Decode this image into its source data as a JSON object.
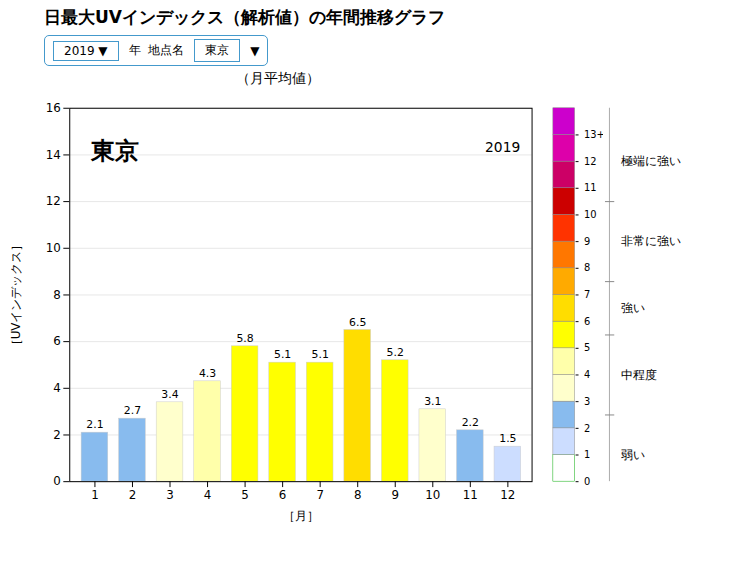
{
  "chart_data": {
    "type": "bar",
    "title": "日最大UVインデックス（解析値）の年間推移グラフ",
    "subtitle": "（月平均値）",
    "xlabel": "［月］",
    "ylabel": "［UVインデックス］",
    "categories": [
      1,
      2,
      3,
      4,
      5,
      6,
      7,
      8,
      9,
      10,
      11,
      12
    ],
    "values": [
      2.1,
      2.7,
      3.4,
      4.3,
      5.8,
      5.1,
      5.1,
      6.5,
      5.2,
      3.1,
      2.2,
      1.5
    ],
    "colors": [
      "#88bbee",
      "#88bbee",
      "#ffffcc",
      "#ffffaa",
      "#ffff00",
      "#ffff00",
      "#ffff00",
      "#ffdd00",
      "#ffff00",
      "#ffffcc",
      "#88bbee",
      "#ccddff"
    ],
    "ylim": [
      0,
      16
    ],
    "yticks": [
      0,
      2,
      4,
      6,
      8,
      10,
      12,
      14,
      16
    ],
    "grid": true,
    "data_labels": true,
    "annotations": [
      {
        "text": "東京"
      },
      {
        "text": "2019"
      }
    ],
    "controls": [
      "2019 ▼",
      "年  地点名",
      "東京",
      "▼"
    ],
    "color_bar": {
      "range": [
        0,
        14
      ],
      "ticks": [
        0,
        1,
        2,
        3,
        4,
        5,
        6,
        7,
        8,
        9,
        10,
        11,
        12,
        {
          "value": 13,
          "label": "13+"
        }
      ],
      "colors": [
        "#ffffff",
        "#ccddff",
        "#88bbee",
        "#ffffcc",
        "#ffffaa",
        "#ffff00",
        "#ffdd00",
        "#ffaa00",
        "#ff7700",
        "#ff3300",
        "#cc0000",
        "#cc0066",
        "#dd00aa",
        "#cc00cc"
      ],
      "boundaries": [
        2.5,
        5.5,
        7.5,
        10.5
      ],
      "category_labels": [
        {
          "label": "極端に強い",
          "y": 12.0
        },
        {
          "label": "非常に強い",
          "y": 9.0
        },
        {
          "label": "強い",
          "y": 6.5
        },
        {
          "label": "中程度",
          "y": 4.0
        },
        {
          "label": "弱い",
          "y": 1.0
        }
      ]
    }
  }
}
